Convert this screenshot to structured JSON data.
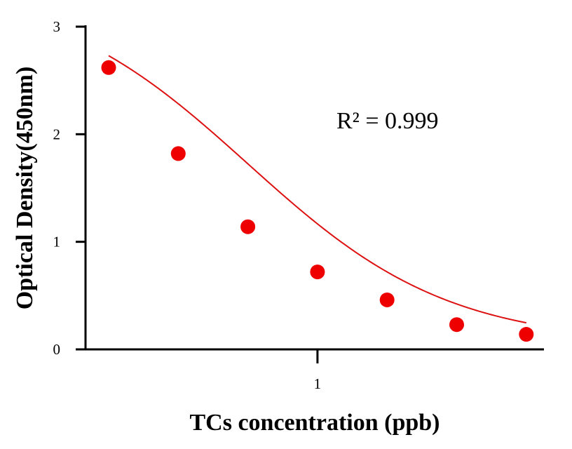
{
  "chart_data": {
    "type": "scatter",
    "title": "",
    "xlabel": "TCs concentration (ppb)",
    "ylabel": "Optical Density(450nm)",
    "x_scale": "log",
    "x": [
      0.125,
      0.25,
      0.5,
      1,
      2,
      4,
      8
    ],
    "y": [
      2.62,
      1.82,
      1.14,
      0.72,
      0.46,
      0.23,
      0.14
    ],
    "ylim": [
      0,
      3
    ],
    "yticks": [
      0,
      1,
      2,
      3
    ],
    "ytick_labels": [
      "0",
      "1",
      "2",
      "3"
    ],
    "xticks": [
      1
    ],
    "xtick_labels": [
      "1"
    ],
    "fit": {
      "type": "four-parameter logistic",
      "A": 3.4,
      "D": 0.05,
      "C": 0.5,
      "B": 1.0
    },
    "annotation": "R² = 0.999",
    "colors": {
      "points": "#ee0000",
      "curve": "#dd1111",
      "axis": "#000000"
    },
    "grid": false,
    "legend": "none"
  }
}
